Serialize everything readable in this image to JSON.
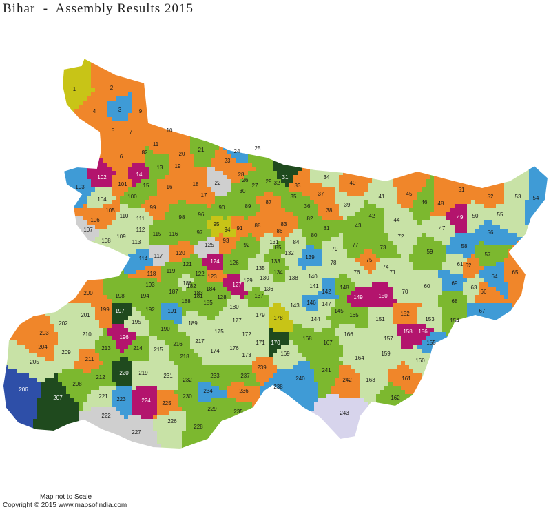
{
  "title": "Bihar  -  Assembly Results 2015",
  "footer": {
    "scale_note": "Map not to Scale",
    "copyright": "Copyright © 2015 www.mapsofindia.com"
  },
  "colors": {
    "orange": "#f0862a",
    "bright_green": "#7cb82f",
    "light_green": "#c8e2a6",
    "blue": "#3f9bd6",
    "magenta": "#b3146d",
    "dark_green": "#1f4a1e",
    "yellow": "#c8c417",
    "grey": "#cfcfcf",
    "navy": "#2e4fa8",
    "lavender": "#d7d4ec",
    "border": "#ffffff"
  },
  "constituencies": [
    {
      "n": "1",
      "c": "yellow"
    },
    {
      "n": "2",
      "c": "orange"
    },
    {
      "n": "3",
      "c": "blue"
    },
    {
      "n": "4",
      "c": "orange"
    },
    {
      "n": "5",
      "c": "orange"
    },
    {
      "n": "6",
      "c": "orange"
    },
    {
      "n": "7",
      "c": "orange"
    },
    {
      "n": "8",
      "c": "orange"
    },
    {
      "n": "9",
      "c": "orange"
    },
    {
      "n": "10",
      "c": "orange"
    },
    {
      "n": "11",
      "c": "orange"
    },
    {
      "n": "12",
      "c": "bright_green"
    },
    {
      "n": "13",
      "c": "bright_green"
    },
    {
      "n": "14",
      "c": "magenta"
    },
    {
      "n": "15",
      "c": "bright_green"
    },
    {
      "n": "16",
      "c": "orange"
    },
    {
      "n": "17",
      "c": "orange"
    },
    {
      "n": "18",
      "c": "orange"
    },
    {
      "n": "19",
      "c": "orange"
    },
    {
      "n": "20",
      "c": "orange"
    },
    {
      "n": "21",
      "c": "bright_green"
    },
    {
      "n": "22",
      "c": "grey"
    },
    {
      "n": "23",
      "c": "orange"
    },
    {
      "n": "24",
      "c": "blue"
    },
    {
      "n": "25",
      "c": "bright_green"
    },
    {
      "n": "26",
      "c": "bright_green"
    },
    {
      "n": "27",
      "c": "bright_green"
    },
    {
      "n": "28",
      "c": "orange"
    },
    {
      "n": "29",
      "c": "bright_green"
    },
    {
      "n": "30",
      "c": "bright_green"
    },
    {
      "n": "31",
      "c": "dark_green"
    },
    {
      "n": "32",
      "c": "bright_green"
    },
    {
      "n": "33",
      "c": "orange"
    },
    {
      "n": "34",
      "c": "light_green"
    },
    {
      "n": "35",
      "c": "bright_green"
    },
    {
      "n": "36",
      "c": "bright_green"
    },
    {
      "n": "37",
      "c": "orange"
    },
    {
      "n": "38",
      "c": "orange"
    },
    {
      "n": "39",
      "c": "light_green"
    },
    {
      "n": "40",
      "c": "orange"
    },
    {
      "n": "41",
      "c": "light_green"
    },
    {
      "n": "42",
      "c": "bright_green"
    },
    {
      "n": "43",
      "c": "bright_green"
    },
    {
      "n": "44",
      "c": "light_green"
    },
    {
      "n": "45",
      "c": "orange"
    },
    {
      "n": "46",
      "c": "bright_green"
    },
    {
      "n": "47",
      "c": "light_green"
    },
    {
      "n": "48",
      "c": "orange"
    },
    {
      "n": "49",
      "c": "magenta"
    },
    {
      "n": "50",
      "c": "light_green"
    },
    {
      "n": "51",
      "c": "orange"
    },
    {
      "n": "52",
      "c": "orange"
    },
    {
      "n": "53",
      "c": "light_green"
    },
    {
      "n": "54",
      "c": "blue"
    },
    {
      "n": "55",
      "c": "light_green"
    },
    {
      "n": "56",
      "c": "blue"
    },
    {
      "n": "57",
      "c": "bright_green"
    },
    {
      "n": "58",
      "c": "blue"
    },
    {
      "n": "59",
      "c": "bright_green"
    },
    {
      "n": "60",
      "c": "light_green"
    },
    {
      "n": "61",
      "c": "light_green"
    },
    {
      "n": "62",
      "c": "orange"
    },
    {
      "n": "63",
      "c": "light_green"
    },
    {
      "n": "64",
      "c": "blue"
    },
    {
      "n": "65",
      "c": "orange"
    },
    {
      "n": "66",
      "c": "orange"
    },
    {
      "n": "67",
      "c": "blue"
    },
    {
      "n": "68",
      "c": "bright_green"
    },
    {
      "n": "69",
      "c": "blue"
    },
    {
      "n": "70",
      "c": "light_green"
    },
    {
      "n": "71",
      "c": "light_green"
    },
    {
      "n": "72",
      "c": "light_green"
    },
    {
      "n": "73",
      "c": "bright_green"
    },
    {
      "n": "74",
      "c": "light_green"
    },
    {
      "n": "75",
      "c": "orange"
    },
    {
      "n": "76",
      "c": "light_green"
    },
    {
      "n": "77",
      "c": "bright_green"
    },
    {
      "n": "78",
      "c": "light_green"
    },
    {
      "n": "79",
      "c": "light_green"
    },
    {
      "n": "80",
      "c": "bright_green"
    },
    {
      "n": "81",
      "c": "bright_green"
    },
    {
      "n": "82",
      "c": "bright_green"
    },
    {
      "n": "83",
      "c": "orange"
    },
    {
      "n": "84",
      "c": "light_green"
    },
    {
      "n": "85",
      "c": "bright_green"
    },
    {
      "n": "86",
      "c": "orange"
    },
    {
      "n": "87",
      "c": "orange"
    },
    {
      "n": "88",
      "c": "orange"
    },
    {
      "n": "89",
      "c": "bright_green"
    },
    {
      "n": "90",
      "c": "bright_green"
    },
    {
      "n": "91",
      "c": "orange"
    },
    {
      "n": "92",
      "c": "bright_green"
    },
    {
      "n": "93",
      "c": "orange"
    },
    {
      "n": "94",
      "c": "yellow"
    },
    {
      "n": "95",
      "c": "yellow"
    },
    {
      "n": "96",
      "c": "bright_green"
    },
    {
      "n": "97",
      "c": "bright_green"
    },
    {
      "n": "98",
      "c": "bright_green"
    },
    {
      "n": "99",
      "c": "orange"
    },
    {
      "n": "100",
      "c": "bright_green"
    },
    {
      "n": "101",
      "c": "orange"
    },
    {
      "n": "102",
      "c": "magenta"
    },
    {
      "n": "103",
      "c": "blue"
    },
    {
      "n": "104",
      "c": "light_green"
    },
    {
      "n": "105",
      "c": "orange"
    },
    {
      "n": "106",
      "c": "orange"
    },
    {
      "n": "107",
      "c": "grey"
    },
    {
      "n": "108",
      "c": "light_green"
    },
    {
      "n": "109",
      "c": "light_green"
    },
    {
      "n": "110",
      "c": "light_green"
    },
    {
      "n": "111",
      "c": "light_green"
    },
    {
      "n": "112",
      "c": "light_green"
    },
    {
      "n": "113",
      "c": "light_green"
    },
    {
      "n": "114",
      "c": "blue"
    },
    {
      "n": "115",
      "c": "bright_green"
    },
    {
      "n": "116",
      "c": "bright_green"
    },
    {
      "n": "117",
      "c": "grey"
    },
    {
      "n": "118",
      "c": "orange"
    },
    {
      "n": "119",
      "c": "bright_green"
    },
    {
      "n": "120",
      "c": "orange"
    },
    {
      "n": "121",
      "c": "bright_green"
    },
    {
      "n": "122",
      "c": "bright_green"
    },
    {
      "n": "123",
      "c": "orange"
    },
    {
      "n": "124",
      "c": "magenta"
    },
    {
      "n": "125",
      "c": "grey"
    },
    {
      "n": "126",
      "c": "bright_green"
    },
    {
      "n": "127",
      "c": "magenta"
    },
    {
      "n": "128",
      "c": "bright_green"
    },
    {
      "n": "129",
      "c": "light_green"
    },
    {
      "n": "130",
      "c": "light_green"
    },
    {
      "n": "131",
      "c": "light_green"
    },
    {
      "n": "132",
      "c": "light_green"
    },
    {
      "n": "133",
      "c": "bright_green"
    },
    {
      "n": "134",
      "c": "bright_green"
    },
    {
      "n": "135",
      "c": "light_green"
    },
    {
      "n": "136",
      "c": "light_green"
    },
    {
      "n": "137",
      "c": "bright_green"
    },
    {
      "n": "138",
      "c": "light_green"
    },
    {
      "n": "139",
      "c": "blue"
    },
    {
      "n": "140",
      "c": "light_green"
    },
    {
      "n": "141",
      "c": "light_green"
    },
    {
      "n": "142",
      "c": "blue"
    },
    {
      "n": "143",
      "c": "light_green"
    },
    {
      "n": "144",
      "c": "light_green"
    },
    {
      "n": "145",
      "c": "bright_green"
    },
    {
      "n": "146",
      "c": "blue"
    },
    {
      "n": "147",
      "c": "light_green"
    },
    {
      "n": "148",
      "c": "bright_green"
    },
    {
      "n": "149",
      "c": "magenta"
    },
    {
      "n": "150",
      "c": "magenta"
    },
    {
      "n": "151",
      "c": "light_green"
    },
    {
      "n": "152",
      "c": "orange"
    },
    {
      "n": "153",
      "c": "light_green"
    },
    {
      "n": "154",
      "c": "bright_green"
    },
    {
      "n": "155",
      "c": "blue"
    },
    {
      "n": "156",
      "c": "magenta"
    },
    {
      "n": "157",
      "c": "light_green"
    },
    {
      "n": "158",
      "c": "magenta"
    },
    {
      "n": "159",
      "c": "light_green"
    },
    {
      "n": "160",
      "c": "light_green"
    },
    {
      "n": "161",
      "c": "orange"
    },
    {
      "n": "162",
      "c": "bright_green"
    },
    {
      "n": "163",
      "c": "light_green"
    },
    {
      "n": "164",
      "c": "light_green"
    },
    {
      "n": "165",
      "c": "bright_green"
    },
    {
      "n": "166",
      "c": "light_green"
    },
    {
      "n": "167",
      "c": "bright_green"
    },
    {
      "n": "168",
      "c": "bright_green"
    },
    {
      "n": "169",
      "c": "light_green"
    },
    {
      "n": "170",
      "c": "dark_green"
    },
    {
      "n": "171",
      "c": "light_green"
    },
    {
      "n": "172",
      "c": "light_green"
    },
    {
      "n": "173",
      "c": "light_green"
    },
    {
      "n": "174",
      "c": "light_green"
    },
    {
      "n": "175",
      "c": "light_green"
    },
    {
      "n": "176",
      "c": "light_green"
    },
    {
      "n": "177",
      "c": "light_green"
    },
    {
      "n": "178",
      "c": "yellow"
    },
    {
      "n": "179",
      "c": "light_green"
    },
    {
      "n": "180",
      "c": "light_green"
    },
    {
      "n": "181",
      "c": "bright_green"
    },
    {
      "n": "182",
      "c": "bright_green"
    },
    {
      "n": "183",
      "c": "bright_green"
    },
    {
      "n": "184",
      "c": "bright_green"
    },
    {
      "n": "185",
      "c": "bright_green"
    },
    {
      "n": "186",
      "c": "light_green"
    },
    {
      "n": "187",
      "c": "bright_green"
    },
    {
      "n": "188",
      "c": "bright_green"
    },
    {
      "n": "189",
      "c": "light_green"
    },
    {
      "n": "190",
      "c": "bright_green"
    },
    {
      "n": "191",
      "c": "blue"
    },
    {
      "n": "192",
      "c": "bright_green"
    },
    {
      "n": "193",
      "c": "bright_green"
    },
    {
      "n": "194",
      "c": "bright_green"
    },
    {
      "n": "195",
      "c": "light_green"
    },
    {
      "n": "196",
      "c": "magenta"
    },
    {
      "n": "197",
      "c": "dark_green"
    },
    {
      "n": "198",
      "c": "bright_green"
    },
    {
      "n": "199",
      "c": "orange"
    },
    {
      "n": "200",
      "c": "orange"
    },
    {
      "n": "201",
      "c": "light_green"
    },
    {
      "n": "202",
      "c": "light_green"
    },
    {
      "n": "203",
      "c": "orange"
    },
    {
      "n": "204",
      "c": "orange"
    },
    {
      "n": "205",
      "c": "light_green"
    },
    {
      "n": "206",
      "c": "navy"
    },
    {
      "n": "207",
      "c": "dark_green"
    },
    {
      "n": "208",
      "c": "bright_green"
    },
    {
      "n": "209",
      "c": "light_green"
    },
    {
      "n": "210",
      "c": "light_green"
    },
    {
      "n": "211",
      "c": "orange"
    },
    {
      "n": "212",
      "c": "bright_green"
    },
    {
      "n": "213",
      "c": "bright_green"
    },
    {
      "n": "214",
      "c": "bright_green"
    },
    {
      "n": "215",
      "c": "light_green"
    },
    {
      "n": "216",
      "c": "bright_green"
    },
    {
      "n": "217",
      "c": "light_green"
    },
    {
      "n": "218",
      "c": "bright_green"
    },
    {
      "n": "219",
      "c": "light_green"
    },
    {
      "n": "220",
      "c": "dark_green"
    },
    {
      "n": "221",
      "c": "light_green"
    },
    {
      "n": "222",
      "c": "grey"
    },
    {
      "n": "223",
      "c": "blue"
    },
    {
      "n": "224",
      "c": "magenta"
    },
    {
      "n": "225",
      "c": "orange"
    },
    {
      "n": "226",
      "c": "light_green"
    },
    {
      "n": "227",
      "c": "grey"
    },
    {
      "n": "228",
      "c": "bright_green"
    },
    {
      "n": "229",
      "c": "bright_green"
    },
    {
      "n": "230",
      "c": "bright_green"
    },
    {
      "n": "231",
      "c": "light_green"
    },
    {
      "n": "232",
      "c": "bright_green"
    },
    {
      "n": "233",
      "c": "bright_green"
    },
    {
      "n": "234",
      "c": "blue"
    },
    {
      "n": "235",
      "c": "bright_green"
    },
    {
      "n": "236",
      "c": "orange"
    },
    {
      "n": "237",
      "c": "bright_green"
    },
    {
      "n": "238",
      "c": "blue"
    },
    {
      "n": "239",
      "c": "orange"
    },
    {
      "n": "240",
      "c": "blue"
    },
    {
      "n": "241",
      "c": "bright_green"
    },
    {
      "n": "242",
      "c": "orange"
    },
    {
      "n": "243",
      "c": "lavender"
    }
  ]
}
